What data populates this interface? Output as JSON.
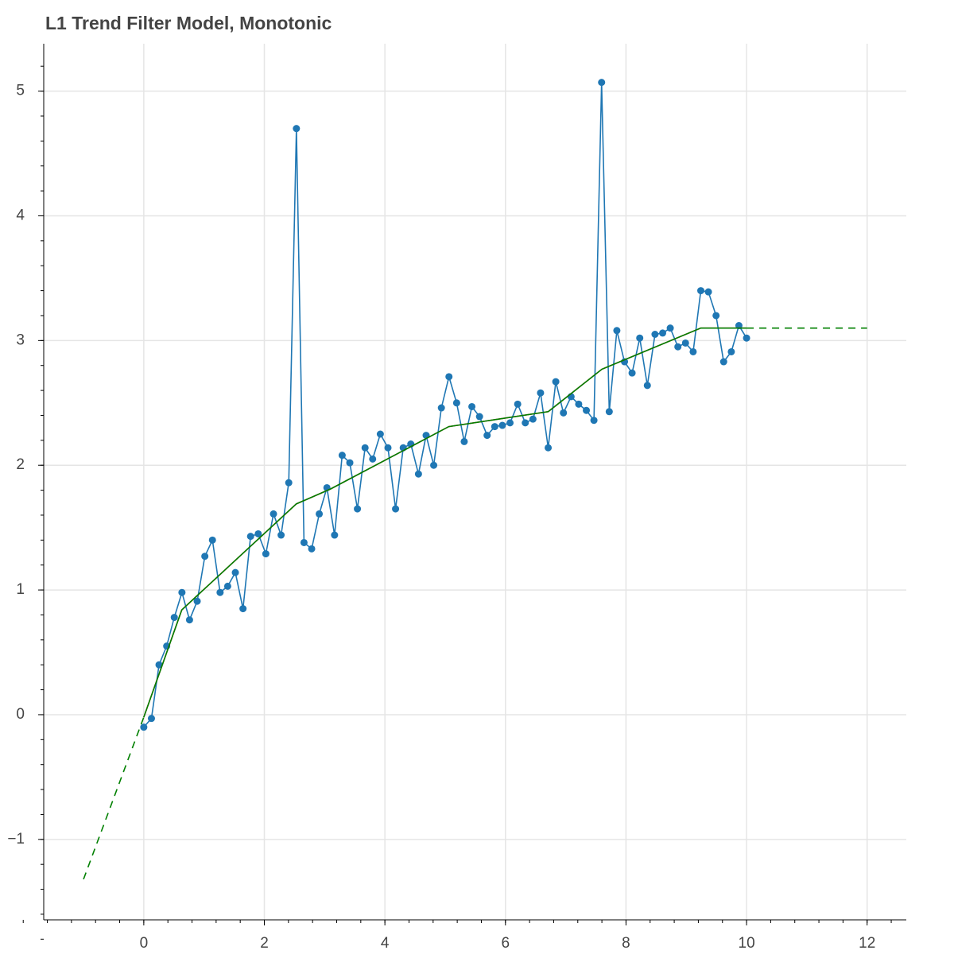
{
  "chart_data": {
    "type": "line",
    "title": "L1 Trend Filter Model, Monotonic",
    "xlim": [
      -1.66,
      12.65
    ],
    "ylim": [
      -1.645,
      5.38
    ],
    "xticks": [
      0,
      2,
      4,
      6,
      8,
      10,
      12
    ],
    "yticks": [
      {
        "value": -1,
        "label": "−1"
      },
      0,
      1,
      2,
      3,
      4,
      5
    ],
    "minor_ticks": 5,
    "grid": true,
    "series": [
      {
        "color": "#1f77b4",
        "markers": true,
        "dash": false,
        "x": [
          0,
          0.127,
          0.253,
          0.38,
          0.506,
          0.633,
          0.759,
          0.886,
          1.013,
          1.139,
          1.266,
          1.392,
          1.519,
          1.646,
          1.772,
          1.899,
          2.025,
          2.152,
          2.278,
          2.405,
          2.532,
          2.658,
          2.785,
          2.911,
          3.038,
          3.165,
          3.291,
          3.418,
          3.544,
          3.671,
          3.797,
          3.924,
          4.051,
          4.177,
          4.304,
          4.43,
          4.557,
          4.684,
          4.81,
          4.937,
          5.063,
          5.19,
          5.316,
          5.443,
          5.57,
          5.696,
          5.823,
          5.949,
          6.076,
          6.203,
          6.329,
          6.456,
          6.582,
          6.709,
          6.835,
          6.962,
          7.089,
          7.215,
          7.342,
          7.468,
          7.595,
          7.722,
          7.848,
          7.975,
          8.101,
          8.228,
          8.354,
          8.481,
          8.608,
          8.734,
          8.861,
          8.987,
          9.114,
          9.241,
          9.367,
          9.494,
          9.62,
          9.747,
          9.873,
          10
        ],
        "values": [
          -0.1,
          -0.03,
          0.4,
          0.55,
          0.78,
          0.98,
          0.76,
          0.91,
          1.27,
          1.4,
          0.98,
          1.03,
          1.14,
          0.85,
          1.43,
          1.45,
          1.29,
          1.61,
          1.44,
          1.86,
          4.7,
          1.38,
          1.33,
          1.61,
          1.82,
          1.44,
          2.08,
          2.02,
          1.65,
          2.14,
          2.05,
          2.25,
          2.14,
          1.65,
          2.14,
          2.17,
          1.93,
          2.24,
          2.0,
          2.46,
          2.71,
          2.5,
          2.19,
          2.47,
          2.39,
          2.24,
          2.31,
          2.32,
          2.34,
          2.49,
          2.34,
          2.37,
          2.58,
          2.14,
          2.67,
          2.42,
          2.55,
          2.49,
          2.44,
          2.36,
          5.07,
          2.43,
          3.08,
          2.83,
          2.74,
          3.02,
          2.64,
          3.05,
          3.06,
          3.1,
          2.95,
          2.98,
          2.91,
          3.4,
          3.39,
          3.2,
          2.83,
          2.91,
          3.12,
          3.02
        ]
      },
      {
        "color": "#d62728",
        "markers": false,
        "dash": false,
        "x": [
          0,
          0.63,
          2.53,
          3.1,
          5.06,
          6.71,
          7.6,
          9.24,
          10
        ],
        "values": [
          -0.02,
          0.84,
          1.69,
          1.81,
          2.31,
          2.43,
          2.77,
          3.1,
          3.1
        ]
      },
      {
        "color": "#008000",
        "markers": false,
        "dash": false,
        "x": [
          0,
          0.63,
          2.53,
          3.1,
          5.06,
          6.71,
          7.6,
          9.24,
          10
        ],
        "values": [
          -0.02,
          0.84,
          1.69,
          1.81,
          2.31,
          2.43,
          2.77,
          3.1,
          3.1
        ]
      },
      {
        "color": "#008000",
        "markers": false,
        "dash": true,
        "x": [
          -1,
          0
        ],
        "values": [
          -1.32,
          -0.02
        ]
      },
      {
        "color": "#008000",
        "markers": false,
        "dash": true,
        "x": [
          10,
          12
        ],
        "values": [
          3.1,
          3.1
        ]
      }
    ]
  }
}
